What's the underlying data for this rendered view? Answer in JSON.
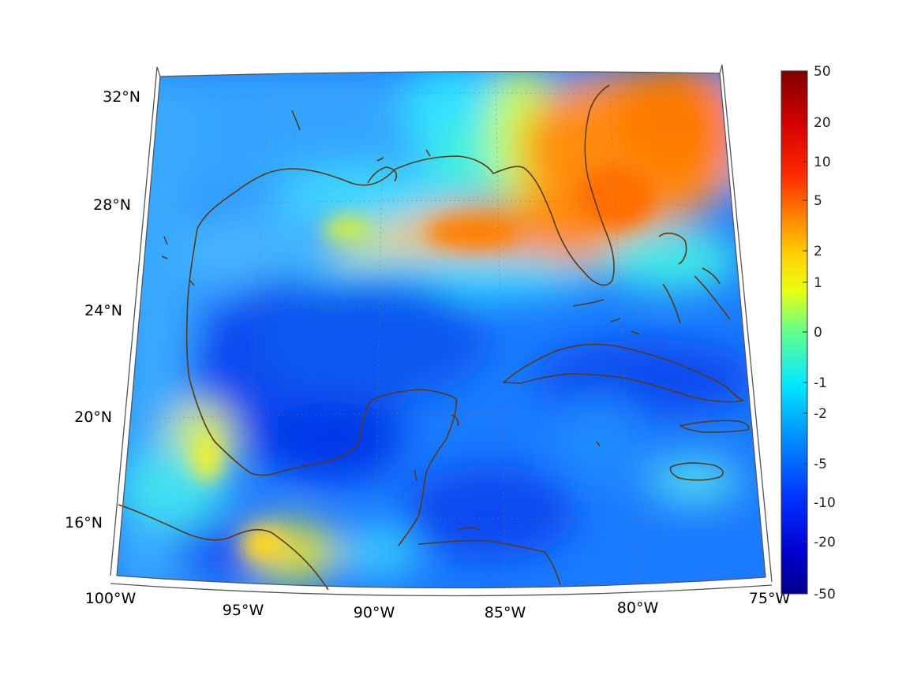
{
  "map": {
    "region": "Gulf of Mexico",
    "lon_range": [
      -100,
      -75
    ],
    "lat_range": [
      14,
      33
    ],
    "longitude_labels": [
      "100°W",
      "95°W",
      "90°W",
      "85°W",
      "80°W",
      "75°W"
    ],
    "latitude_labels": [
      "32°N",
      "28°N",
      "24°N",
      "20°N",
      "16°N"
    ],
    "coastline_color": "#5a3a10",
    "frame_color": "#555555",
    "grid": "dotted"
  },
  "colorbar": {
    "tick_labels": [
      "50",
      "20",
      "10",
      "5",
      "2",
      "1",
      "0",
      "-1",
      "-2",
      "-5",
      "-10",
      "-20",
      "-50"
    ],
    "range": [
      -50,
      50
    ],
    "colormap": "jet",
    "top_color": "#800000",
    "bottom_color": "#00008f"
  }
}
